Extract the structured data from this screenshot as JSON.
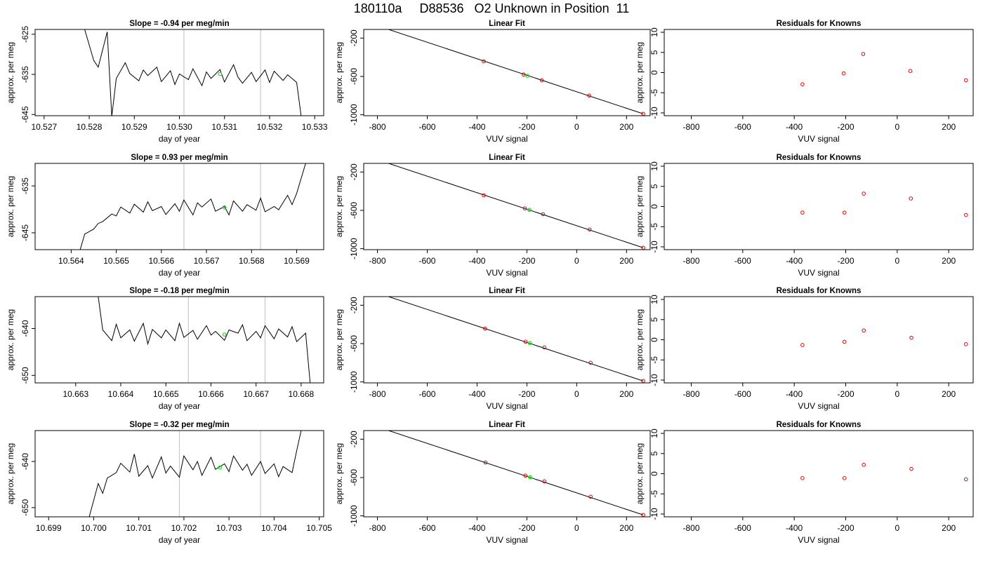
{
  "title": "180110a     D88536   O2 Unknown in Position  11",
  "colors": {
    "trace": "#000000",
    "marker_green": "#00ee00",
    "points_red": "#dd0000",
    "vline": "#c8c8c8",
    "frame": "#000000"
  },
  "chart_data": [
    {
      "type": "line",
      "title": "Slope =  -0.94  per meg/min",
      "xlabel": "day of year",
      "ylabel": "approx. per meg",
      "xlim": [
        10.5268,
        10.5332
      ],
      "xticks": [
        "10.527",
        "10.528",
        "10.529",
        "10.530",
        "10.531",
        "10.532",
        "10.533"
      ],
      "ylim": [
        -645.3,
        -623.8
      ],
      "yticks": [
        "-625",
        "-635",
        "-645"
      ],
      "series": [
        {
          "x": [
            10.5279,
            10.5281,
            10.5282,
            10.5284,
            10.5285,
            10.5286,
            10.5288,
            10.5289,
            10.5291,
            10.5292,
            10.5293,
            10.5295,
            10.5296,
            10.5298,
            10.5299,
            10.53,
            10.5302,
            10.5303,
            10.5305,
            10.5306,
            10.5307,
            10.5309,
            10.531,
            10.5312,
            10.5313,
            10.5314,
            10.5316,
            10.5317,
            10.5319,
            10.532,
            10.5321,
            10.5323,
            10.5324,
            10.5326,
            10.5327
          ],
          "y": [
            -623.8,
            -631.5,
            -633.2,
            -624.4,
            -645.5,
            -636.0,
            -632.1,
            -634.8,
            -636.6,
            -633.9,
            -635.3,
            -633.2,
            -636.8,
            -634.1,
            -637.5,
            -634.9,
            -636.3,
            -633.6,
            -637.8,
            -634.4,
            -636.0,
            -633.8,
            -636.9,
            -632.6,
            -635.7,
            -637.2,
            -634.5,
            -636.8,
            -633.9,
            -637.0,
            -634.2,
            -636.5,
            -635.1,
            -637.0,
            -645.4
          ]
        }
      ],
      "vlines": [
        10.5301,
        10.5318
      ],
      "marker": {
        "x": 10.5309,
        "y": -634.9
      }
    },
    {
      "type": "line",
      "title": "Slope =  0.93  per meg/min",
      "xlabel": "day of year",
      "ylabel": "approx. per meg",
      "xlim": [
        10.5632,
        10.5696
      ],
      "xticks": [
        "10.564",
        "10.565",
        "10.566",
        "10.567",
        "10.568",
        "10.569"
      ],
      "ylim": [
        -648.6,
        -630.2
      ],
      "yticks": [
        "-635",
        "-645"
      ],
      "series": [
        {
          "x": [
            10.5642,
            10.5643,
            10.5645,
            10.5646,
            10.5647,
            10.5649,
            10.565,
            10.5651,
            10.5653,
            10.5654,
            10.5656,
            10.5657,
            10.5658,
            10.566,
            10.5661,
            10.5663,
            10.5664,
            10.5665,
            10.5667,
            10.5668,
            10.5669,
            10.5671,
            10.5672,
            10.5674,
            10.5675,
            10.5676,
            10.5678,
            10.5679,
            10.5681,
            10.5682,
            10.5683,
            10.5685,
            10.5686,
            10.5688,
            10.5689,
            10.569,
            10.5692
          ],
          "y": [
            -648.6,
            -645.3,
            -644.2,
            -643.0,
            -642.6,
            -641.0,
            -641.4,
            -639.5,
            -640.8,
            -638.9,
            -640.6,
            -638.4,
            -640.3,
            -639.4,
            -641.1,
            -638.8,
            -640.4,
            -638.0,
            -641.2,
            -638.6,
            -639.5,
            -637.8,
            -640.4,
            -639.4,
            -641.2,
            -638.2,
            -640.4,
            -639.0,
            -640.2,
            -637.6,
            -640.5,
            -639.4,
            -640.1,
            -637.0,
            -639.0,
            -636.6,
            -630.2
          ]
        }
      ],
      "vlines": [
        10.5665,
        10.5682
      ],
      "marker": {
        "x": 10.5674,
        "y": -639.6
      }
    },
    {
      "type": "line",
      "title": "Slope =  -0.18  per meg/min",
      "xlabel": "day of year",
      "ylabel": "approx. per meg",
      "xlim": [
        10.6621,
        10.6685
      ],
      "xticks": [
        "10.663",
        "10.664",
        "10.665",
        "10.666",
        "10.667",
        "10.668"
      ],
      "ylim": [
        -651.6,
        -633.2
      ],
      "yticks": [
        "-640",
        "-650"
      ],
      "series": [
        {
          "x": [
            10.6635,
            10.6636,
            10.6638,
            10.6639,
            10.664,
            10.6642,
            10.6643,
            10.6645,
            10.6646,
            10.6647,
            10.6649,
            10.665,
            10.6652,
            10.6653,
            10.6654,
            10.6656,
            10.6657,
            10.6659,
            10.666,
            10.6661,
            10.6663,
            10.6664,
            10.6666,
            10.6667,
            10.6668,
            10.667,
            10.6671,
            10.6672,
            10.6674,
            10.6675,
            10.6677,
            10.6678,
            10.6679,
            10.6681,
            10.6682
          ],
          "y": [
            -633.2,
            -640.3,
            -642.6,
            -639.1,
            -642.0,
            -640.3,
            -642.7,
            -638.9,
            -643.3,
            -640.2,
            -642.0,
            -640.3,
            -642.6,
            -638.9,
            -641.9,
            -640.4,
            -642.3,
            -639.4,
            -641.4,
            -640.6,
            -642.5,
            -640.3,
            -641.0,
            -639.2,
            -642.6,
            -640.6,
            -642.0,
            -639.4,
            -642.2,
            -640.1,
            -641.8,
            -639.6,
            -642.8,
            -641.0,
            -651.6
          ]
        }
      ],
      "vlines": [
        10.6655,
        10.6672
      ],
      "marker": {
        "x": 10.6663,
        "y": -641.3
      }
    },
    {
      "type": "line",
      "title": "Slope =  -0.32  per meg/min",
      "xlabel": "day of year",
      "ylabel": "approx. per meg",
      "xlim": [
        10.6987,
        10.7051
      ],
      "xticks": [
        "10.699",
        "10.700",
        "10.701",
        "10.702",
        "10.703",
        "10.704",
        "10.705"
      ],
      "ylim": [
        -652.0,
        -633.3
      ],
      "yticks": [
        "-640",
        "-650"
      ],
      "series": [
        {
          "x": [
            10.6999,
            10.7001,
            10.7002,
            10.7003,
            10.7005,
            10.7006,
            10.7008,
            10.7009,
            10.701,
            10.7012,
            10.7013,
            10.7015,
            10.7016,
            10.7017,
            10.7019,
            10.702,
            10.7022,
            10.7023,
            10.7024,
            10.7026,
            10.7027,
            10.7029,
            10.703,
            10.7031,
            10.7033,
            10.7034,
            10.7035,
            10.7037,
            10.7038,
            10.704,
            10.7041,
            10.7042,
            10.7044,
            10.7045,
            10.7046
          ],
          "y": [
            -652.0,
            -644.8,
            -646.9,
            -643.6,
            -642.4,
            -640.4,
            -642.3,
            -638.4,
            -643.2,
            -640.9,
            -643.6,
            -639.0,
            -642.5,
            -641.0,
            -643.4,
            -638.8,
            -641.8,
            -640.0,
            -643.0,
            -639.1,
            -641.7,
            -640.5,
            -642.2,
            -638.8,
            -641.9,
            -640.6,
            -643.0,
            -640.0,
            -642.6,
            -640.5,
            -643.3,
            -641.1,
            -642.4,
            -637.7,
            -633.3
          ]
        }
      ],
      "vlines": [
        10.7019,
        10.7037
      ],
      "marker": {
        "x": 10.7028,
        "y": -641.3
      }
    },
    {
      "type": "scatter",
      "title": "Linear Fit",
      "xlabel": "VUV signal",
      "ylabel": "approx. per meg",
      "xlim": [
        -855,
        295
      ],
      "xticks": [
        "-800",
        "-600",
        "-400",
        "-200",
        "0",
        "200"
      ],
      "ylim": [
        -1010,
        -110
      ],
      "yticks": [
        "-200",
        "-600",
        "-1000"
      ],
      "series": [
        {
          "x": [
            -373,
            -213,
            -140,
            50,
            267
          ],
          "y": [
            -443,
            -580,
            -640,
            -800,
            -990
          ]
        }
      ],
      "fit_line": {
        "x": [
          -825,
          267
        ],
        "y": [
          -50,
          -990
        ]
      },
      "marker": {
        "x": -198,
        "y": -593
      }
    },
    {
      "type": "scatter",
      "title": "Linear Fit",
      "xlabel": "VUV signal",
      "ylabel": "approx. per meg",
      "xlim": [
        -855,
        295
      ],
      "xticks": [
        "-800",
        "-600",
        "-400",
        "-200",
        "0",
        "200"
      ],
      "ylim": [
        -1010,
        -110
      ],
      "yticks": [
        "-200",
        "-600",
        "-1000"
      ],
      "series": [
        {
          "x": [
            -373,
            -208,
            -135,
            52,
            267
          ],
          "y": [
            -443,
            -580,
            -640,
            -800,
            -990
          ]
        }
      ],
      "fit_line": {
        "x": [
          -825,
          267
        ],
        "y": [
          -50,
          -990
        ]
      },
      "marker": {
        "x": -190,
        "y": -595
      }
    },
    {
      "type": "scatter",
      "title": "Linear Fit",
      "xlabel": "VUV signal",
      "ylabel": "approx. per meg",
      "xlim": [
        -855,
        295
      ],
      "xticks": [
        "-800",
        "-600",
        "-400",
        "-200",
        "0",
        "200"
      ],
      "ylim": [
        -1010,
        -110
      ],
      "yticks": [
        "-200",
        "-600",
        "-1000"
      ],
      "series": [
        {
          "x": [
            -368,
            -205,
            -130,
            56,
            267
          ],
          "y": [
            -443,
            -580,
            -640,
            -800,
            -990
          ]
        }
      ],
      "fit_line": {
        "x": [
          -825,
          267
        ],
        "y": [
          -50,
          -990
        ]
      },
      "marker": {
        "x": -188,
        "y": -595
      }
    },
    {
      "type": "scatter",
      "title": "Linear Fit",
      "xlabel": "VUV signal",
      "ylabel": "approx. per meg",
      "xlim": [
        -855,
        295
      ],
      "xticks": [
        "-800",
        "-600",
        "-400",
        "-200",
        "0",
        "200"
      ],
      "ylim": [
        -1010,
        -110
      ],
      "yticks": [
        "-200",
        "-600",
        "-1000"
      ],
      "series": [
        {
          "x": [
            -366,
            -206,
            -130,
            56,
            267
          ],
          "y": [
            -443,
            -580,
            -640,
            -800,
            -990
          ]
        }
      ],
      "fit_line": {
        "x": [
          -825,
          267
        ],
        "y": [
          -50,
          -990
        ]
      },
      "marker": {
        "x": -187,
        "y": -596
      }
    },
    {
      "type": "scatter",
      "title": "Residuals for Knowns",
      "xlabel": "VUV signal",
      "ylabel": "approx. per meg",
      "xlim": [
        -905,
        295
      ],
      "xticks": [
        "-800",
        "-600",
        "-400",
        "-200",
        "0",
        "200"
      ],
      "ylim": [
        -10.7,
        10.7
      ],
      "yticks": [
        "-10",
        "-5",
        "0",
        "5",
        "10"
      ],
      "series": [
        {
          "x": [
            -368,
            -208,
            -132,
            51,
            267
          ],
          "y": [
            -2.9,
            -0.2,
            4.6,
            0.4,
            -1.9
          ]
        }
      ]
    },
    {
      "type": "scatter",
      "title": "Residuals for Knowns",
      "xlabel": "VUV signal",
      "ylabel": "approx. per meg",
      "xlim": [
        -905,
        295
      ],
      "xticks": [
        "-800",
        "-600",
        "-400",
        "-200",
        "0",
        "200"
      ],
      "ylim": [
        -10.7,
        10.7
      ],
      "yticks": [
        "-10",
        "-5",
        "0",
        "5",
        "10"
      ],
      "series": [
        {
          "x": [
            -368,
            -205,
            -130,
            53,
            267
          ],
          "y": [
            -1.5,
            -1.5,
            3.2,
            2.0,
            -2.1
          ]
        }
      ]
    },
    {
      "type": "scatter",
      "title": "Residuals for Knowns",
      "xlabel": "VUV signal",
      "ylabel": "approx. per meg",
      "xlim": [
        -905,
        295
      ],
      "xticks": [
        "-800",
        "-600",
        "-400",
        "-200",
        "0",
        "200"
      ],
      "ylim": [
        -10.7,
        10.7
      ],
      "yticks": [
        "-10",
        "-5",
        "0",
        "5",
        "10"
      ],
      "series": [
        {
          "x": [
            -368,
            -205,
            -130,
            55,
            267
          ],
          "y": [
            -1.3,
            -0.5,
            2.3,
            0.5,
            -1.1
          ]
        }
      ]
    },
    {
      "type": "scatter",
      "title": "Residuals for Knowns",
      "xlabel": "VUV signal",
      "ylabel": "approx. per meg",
      "xlim": [
        -905,
        295
      ],
      "xticks": [
        "-800",
        "-600",
        "-400",
        "-200",
        "0",
        "200"
      ],
      "ylim": [
        -10.7,
        10.7
      ],
      "yticks": [
        "-10",
        "-5",
        "0",
        "5",
        "10"
      ],
      "series": [
        {
          "x": [
            -368,
            -205,
            -130,
            55,
            267
          ],
          "y": [
            -1.1,
            -1.1,
            2.2,
            1.2,
            -1.4
          ]
        }
      ]
    }
  ]
}
